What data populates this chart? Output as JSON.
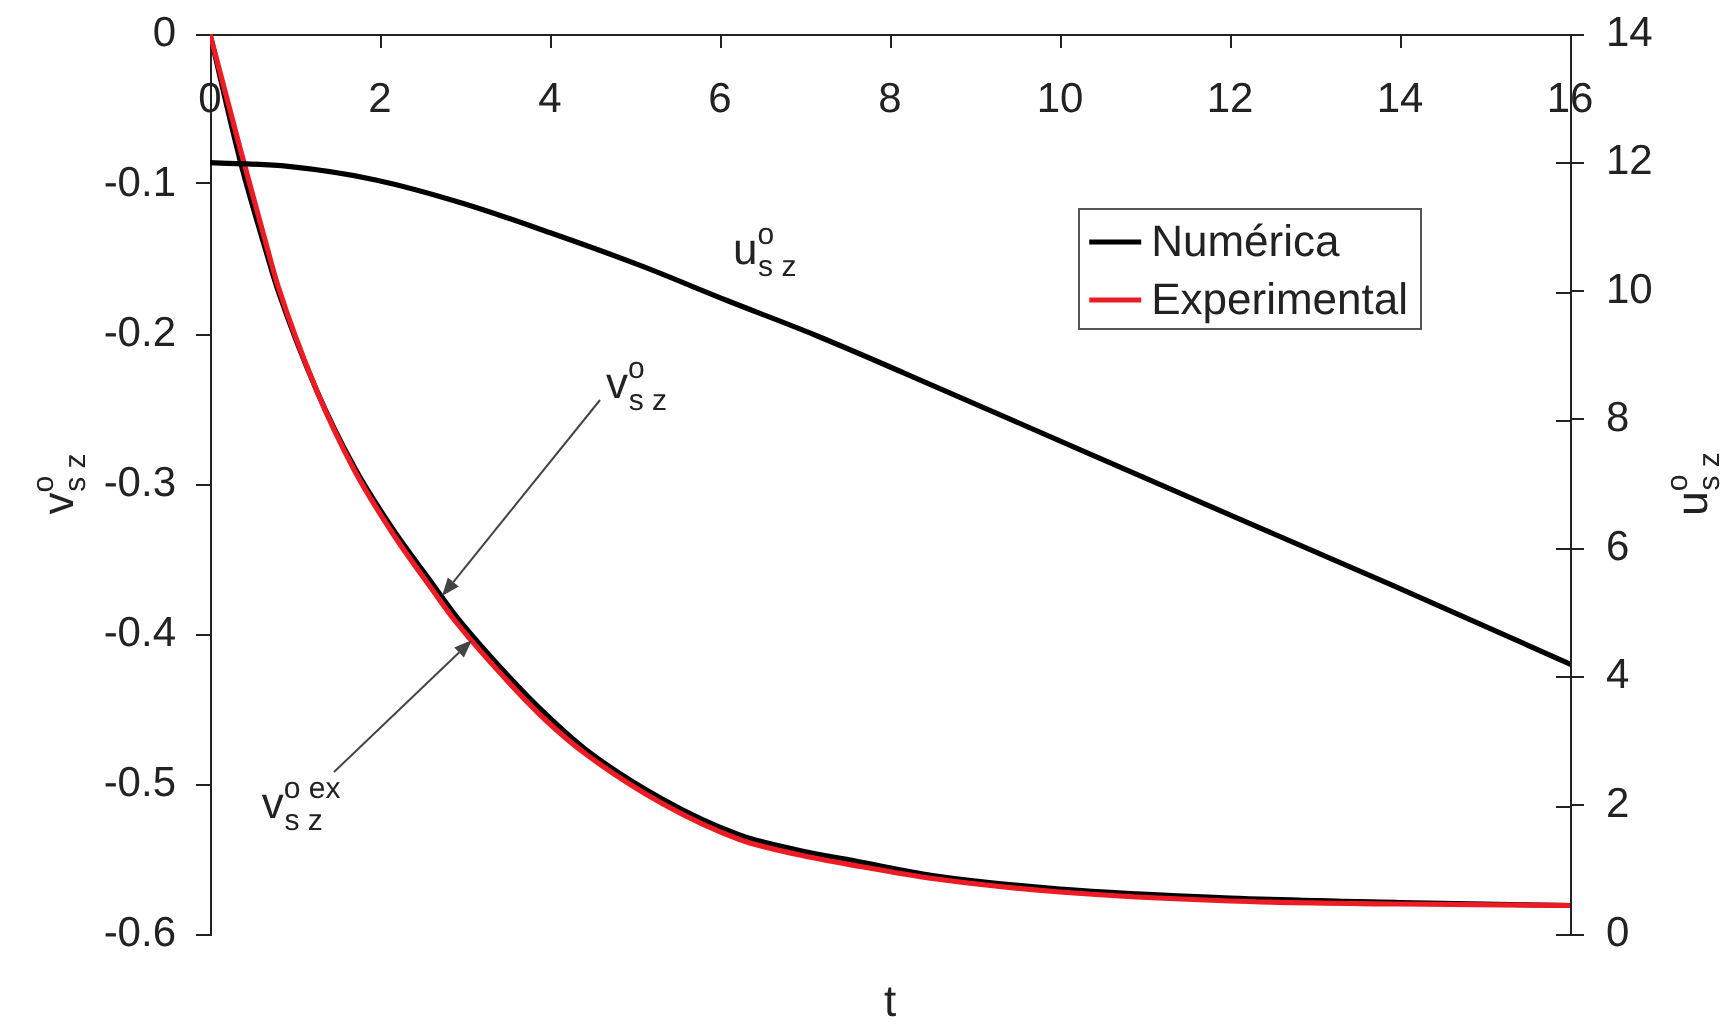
{
  "chart_data": {
    "type": "line",
    "xlabel": "t",
    "ylabel": "v$^{o}$$_{s z}$",
    "y2label": "u$^{o}$$_{s z}$",
    "x": [
      0,
      0.362,
      0.66,
      0.8,
      1.25,
      1.7,
      2.15,
      2.61,
      2.88,
      3.51,
      3.96,
      4.42,
      5.32,
      6.23,
      6.91,
      7.65,
      8.5,
      10,
      12,
      14,
      16
    ],
    "series": [
      {
        "name": "Numérica",
        "color": "#000000",
        "values": [
          0,
          -0.086,
          -0.145,
          -0.171,
          -0.237,
          -0.289,
          -0.33,
          -0.366,
          -0.387,
          -0.428,
          -0.454,
          -0.477,
          -0.51,
          -0.534,
          -0.544,
          -0.552,
          -0.561,
          -0.57,
          -0.576,
          -0.579,
          -0.581
        ]
      },
      {
        "name": "Experimental",
        "color": "#ed1c24",
        "values": [
          0,
          -0.078,
          -0.14,
          -0.168,
          -0.237,
          -0.291,
          -0.333,
          -0.37,
          -0.391,
          -0.432,
          -0.458,
          -0.48,
          -0.513,
          -0.537,
          -0.547,
          -0.555,
          -0.563,
          -0.572,
          -0.578,
          -0.58,
          -0.581
        ]
      },
      {
        "name": "u$^{o}$$_{s z}$",
        "color": "#000000",
        "axis": "y2",
        "x": [
          0,
          0.92,
          1.95,
          2.99,
          4.02,
          5.06,
          6.09,
          7.13,
          8.16,
          10.24,
          12.12,
          13.92,
          16
        ],
        "values": [
          12.0,
          11.94,
          11.73,
          11.36,
          10.9,
          10.4,
          9.85,
          9.31,
          8.73,
          7.53,
          6.45,
          5.42,
          4.2
        ]
      }
    ],
    "xlim": [
      0,
      16
    ],
    "xticks": [
      0,
      2,
      4,
      6,
      8,
      10,
      12,
      14,
      16
    ],
    "ylim": [
      -0.6,
      0
    ],
    "yticks": [
      -0.6,
      -0.5,
      -0.4,
      -0.3,
      -0.2,
      -0.1,
      0
    ],
    "y2lim": [
      0,
      14
    ],
    "y2ticks": [
      0,
      2,
      4,
      6,
      8,
      10,
      12,
      14
    ],
    "legend": "top right",
    "annotations": [
      "v$^{o}$$_{s z}$",
      "v$^{o ex}$$_{s z}$"
    ]
  }
}
